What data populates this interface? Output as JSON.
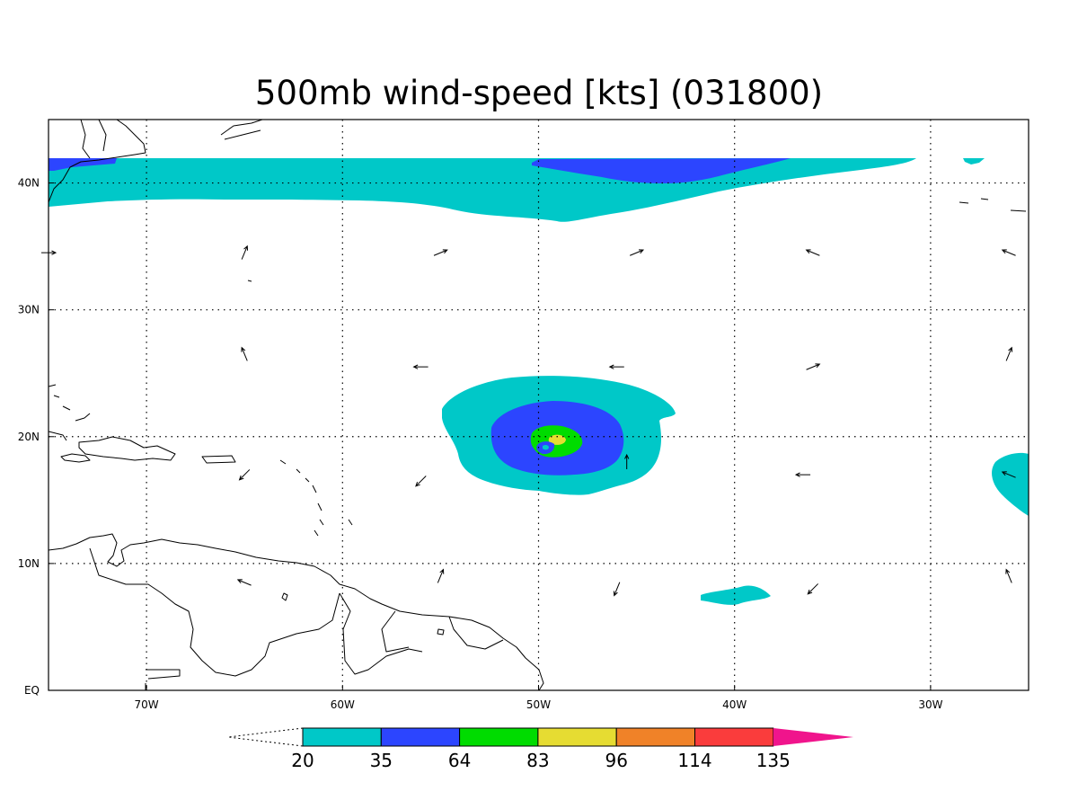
{
  "title": "500mb wind-speed [kts] (031800)",
  "map": {
    "lon_range": [
      -75,
      -25
    ],
    "lat_range": [
      0,
      45
    ],
    "lon_ticks": [
      {
        "value": -70,
        "label": "70W"
      },
      {
        "value": -60,
        "label": "60W"
      },
      {
        "value": -50,
        "label": "50W"
      },
      {
        "value": -40,
        "label": "40W"
      },
      {
        "value": -30,
        "label": "30W"
      }
    ],
    "lat_ticks": [
      {
        "value": 0,
        "label": "EQ"
      },
      {
        "value": 10,
        "label": "10N"
      },
      {
        "value": 20,
        "label": "20N"
      },
      {
        "value": 30,
        "label": "30N"
      },
      {
        "value": 40,
        "label": "40N"
      }
    ],
    "grid": "dotted",
    "projection": "lat-lon"
  },
  "colorbar": {
    "levels": [
      "20",
      "35",
      "64",
      "83",
      "96",
      "114",
      "135"
    ],
    "colors": [
      "#00c8c8",
      "#2c45ff",
      "#00dc00",
      "#e6dc32",
      "#f08228",
      "#fa3c3c",
      "#f0148c"
    ],
    "extend": "both"
  },
  "wind_vectors": [
    {
      "lon": -75,
      "lat": 34.5,
      "dir": "E"
    },
    {
      "lon": -65,
      "lat": 34.5,
      "dir": "NNE"
    },
    {
      "lon": -55,
      "lat": 34.5,
      "dir": "ENE"
    },
    {
      "lon": -45,
      "lat": 34.5,
      "dir": "ENE"
    },
    {
      "lon": -36,
      "lat": 34.5,
      "dir": "WNW"
    },
    {
      "lon": -26,
      "lat": 34.5,
      "dir": "WNW"
    },
    {
      "lon": -65,
      "lat": 26.5,
      "dir": "NNW"
    },
    {
      "lon": -56,
      "lat": 25.5,
      "dir": "W"
    },
    {
      "lon": -46,
      "lat": 25.5,
      "dir": "W"
    },
    {
      "lon": -36,
      "lat": 25.5,
      "dir": "ENE"
    },
    {
      "lon": -26,
      "lat": 26.5,
      "dir": "NNE"
    },
    {
      "lon": -65,
      "lat": 17,
      "dir": "SW"
    },
    {
      "lon": -56,
      "lat": 16.5,
      "dir": "SW"
    },
    {
      "lon": -45.5,
      "lat": 18,
      "dir": "N"
    },
    {
      "lon": -36.5,
      "lat": 17,
      "dir": "W"
    },
    {
      "lon": -26,
      "lat": 17,
      "dir": "WNW"
    },
    {
      "lon": -65,
      "lat": 8.5,
      "dir": "WNW"
    },
    {
      "lon": -55,
      "lat": 9,
      "dir": "NNE"
    },
    {
      "lon": -46,
      "lat": 8,
      "dir": "SSW"
    },
    {
      "lon": -36,
      "lat": 8,
      "dir": "SW"
    },
    {
      "lon": -26,
      "lat": 9,
      "dir": "NNW"
    }
  ]
}
